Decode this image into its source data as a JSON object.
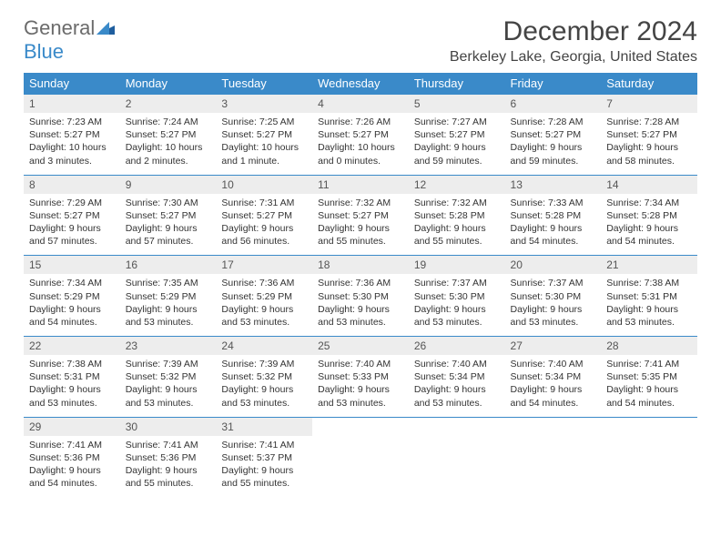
{
  "brand": {
    "general": "General",
    "blue": "Blue"
  },
  "title": "December 2024",
  "location": "Berkeley Lake, Georgia, United States",
  "colors": {
    "header_bg": "#3a8ac9",
    "header_fg": "#ffffff",
    "daynum_bg": "#ededed",
    "row_border": "#3a8ac9",
    "brand_gray": "#6b6b6b",
    "brand_blue": "#3a8ac9"
  },
  "weekdays": [
    "Sunday",
    "Monday",
    "Tuesday",
    "Wednesday",
    "Thursday",
    "Friday",
    "Saturday"
  ],
  "days": [
    {
      "n": "1",
      "sr": "7:23 AM",
      "ss": "5:27 PM",
      "dl": "10 hours and 3 minutes."
    },
    {
      "n": "2",
      "sr": "7:24 AM",
      "ss": "5:27 PM",
      "dl": "10 hours and 2 minutes."
    },
    {
      "n": "3",
      "sr": "7:25 AM",
      "ss": "5:27 PM",
      "dl": "10 hours and 1 minute."
    },
    {
      "n": "4",
      "sr": "7:26 AM",
      "ss": "5:27 PM",
      "dl": "10 hours and 0 minutes."
    },
    {
      "n": "5",
      "sr": "7:27 AM",
      "ss": "5:27 PM",
      "dl": "9 hours and 59 minutes."
    },
    {
      "n": "6",
      "sr": "7:28 AM",
      "ss": "5:27 PM",
      "dl": "9 hours and 59 minutes."
    },
    {
      "n": "7",
      "sr": "7:28 AM",
      "ss": "5:27 PM",
      "dl": "9 hours and 58 minutes."
    },
    {
      "n": "8",
      "sr": "7:29 AM",
      "ss": "5:27 PM",
      "dl": "9 hours and 57 minutes."
    },
    {
      "n": "9",
      "sr": "7:30 AM",
      "ss": "5:27 PM",
      "dl": "9 hours and 57 minutes."
    },
    {
      "n": "10",
      "sr": "7:31 AM",
      "ss": "5:27 PM",
      "dl": "9 hours and 56 minutes."
    },
    {
      "n": "11",
      "sr": "7:32 AM",
      "ss": "5:27 PM",
      "dl": "9 hours and 55 minutes."
    },
    {
      "n": "12",
      "sr": "7:32 AM",
      "ss": "5:28 PM",
      "dl": "9 hours and 55 minutes."
    },
    {
      "n": "13",
      "sr": "7:33 AM",
      "ss": "5:28 PM",
      "dl": "9 hours and 54 minutes."
    },
    {
      "n": "14",
      "sr": "7:34 AM",
      "ss": "5:28 PM",
      "dl": "9 hours and 54 minutes."
    },
    {
      "n": "15",
      "sr": "7:34 AM",
      "ss": "5:29 PM",
      "dl": "9 hours and 54 minutes."
    },
    {
      "n": "16",
      "sr": "7:35 AM",
      "ss": "5:29 PM",
      "dl": "9 hours and 53 minutes."
    },
    {
      "n": "17",
      "sr": "7:36 AM",
      "ss": "5:29 PM",
      "dl": "9 hours and 53 minutes."
    },
    {
      "n": "18",
      "sr": "7:36 AM",
      "ss": "5:30 PM",
      "dl": "9 hours and 53 minutes."
    },
    {
      "n": "19",
      "sr": "7:37 AM",
      "ss": "5:30 PM",
      "dl": "9 hours and 53 minutes."
    },
    {
      "n": "20",
      "sr": "7:37 AM",
      "ss": "5:30 PM",
      "dl": "9 hours and 53 minutes."
    },
    {
      "n": "21",
      "sr": "7:38 AM",
      "ss": "5:31 PM",
      "dl": "9 hours and 53 minutes."
    },
    {
      "n": "22",
      "sr": "7:38 AM",
      "ss": "5:31 PM",
      "dl": "9 hours and 53 minutes."
    },
    {
      "n": "23",
      "sr": "7:39 AM",
      "ss": "5:32 PM",
      "dl": "9 hours and 53 minutes."
    },
    {
      "n": "24",
      "sr": "7:39 AM",
      "ss": "5:32 PM",
      "dl": "9 hours and 53 minutes."
    },
    {
      "n": "25",
      "sr": "7:40 AM",
      "ss": "5:33 PM",
      "dl": "9 hours and 53 minutes."
    },
    {
      "n": "26",
      "sr": "7:40 AM",
      "ss": "5:34 PM",
      "dl": "9 hours and 53 minutes."
    },
    {
      "n": "27",
      "sr": "7:40 AM",
      "ss": "5:34 PM",
      "dl": "9 hours and 54 minutes."
    },
    {
      "n": "28",
      "sr": "7:41 AM",
      "ss": "5:35 PM",
      "dl": "9 hours and 54 minutes."
    },
    {
      "n": "29",
      "sr": "7:41 AM",
      "ss": "5:36 PM",
      "dl": "9 hours and 54 minutes."
    },
    {
      "n": "30",
      "sr": "7:41 AM",
      "ss": "5:36 PM",
      "dl": "9 hours and 55 minutes."
    },
    {
      "n": "31",
      "sr": "7:41 AM",
      "ss": "5:37 PM",
      "dl": "9 hours and 55 minutes."
    }
  ],
  "labels": {
    "sunrise": "Sunrise:",
    "sunset": "Sunset:",
    "daylight": "Daylight:"
  }
}
